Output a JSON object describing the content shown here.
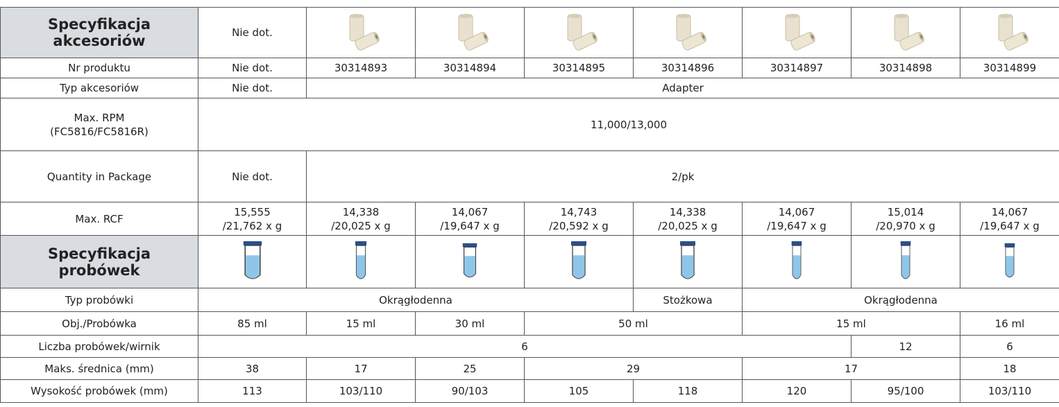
{
  "table": {
    "rows": [
      [
        [
          "Specyfikacja",
          "akcesoriów"
        ],
        "Nie dot."
      ],
      [
        "Nr produktu",
        "Nie dot.",
        "30314893",
        "30314894",
        "30314895",
        "30314896",
        "30314897",
        "30314898",
        "30314899"
      ],
      [
        "Typ akcesoriów",
        "Nie dot.",
        "Adapter"
      ],
      [
        [
          "Max. RPM",
          "(FC5816/FC5816R)"
        ],
        "11,000/13,000"
      ],
      [
        "Quantity in Package",
        "Nie dot.",
        "2/pk"
      ],
      [
        "Max. RCF",
        [
          "15,555",
          "/21,762 x g"
        ],
        [
          "14,338",
          "/20,025 x g"
        ],
        [
          "14,067",
          "/19,647 x g"
        ],
        [
          "14,743",
          "/20,592 x g"
        ],
        [
          "14,338",
          "/20,025 x g"
        ],
        [
          "14,067",
          "/19,647 x g"
        ],
        [
          "15,014",
          "/20,970 x g"
        ],
        [
          "14,067",
          "/19,647 x g"
        ]
      ],
      [
        [
          "Specyfikacja",
          "probówek"
        ]
      ],
      [
        "Typ probówki",
        "Okrągłodenna",
        "Stożkowa",
        "Okrągłodenna"
      ],
      [
        "Obj./Probówka",
        "85 ml",
        "15 ml",
        "30 ml",
        "50 ml",
        "15 ml",
        "16 ml"
      ],
      [
        "Liczba probówek/wirnik",
        "6",
        "12",
        "6"
      ],
      [
        "Maks. średnica (mm)",
        "38",
        "17",
        "25",
        "29",
        "17",
        "18"
      ],
      [
        "Wysokość probówek (mm)",
        "113",
        "103/110",
        "90/103",
        "105",
        "118",
        "120",
        "95/100",
        "103/110"
      ]
    ]
  }
}
